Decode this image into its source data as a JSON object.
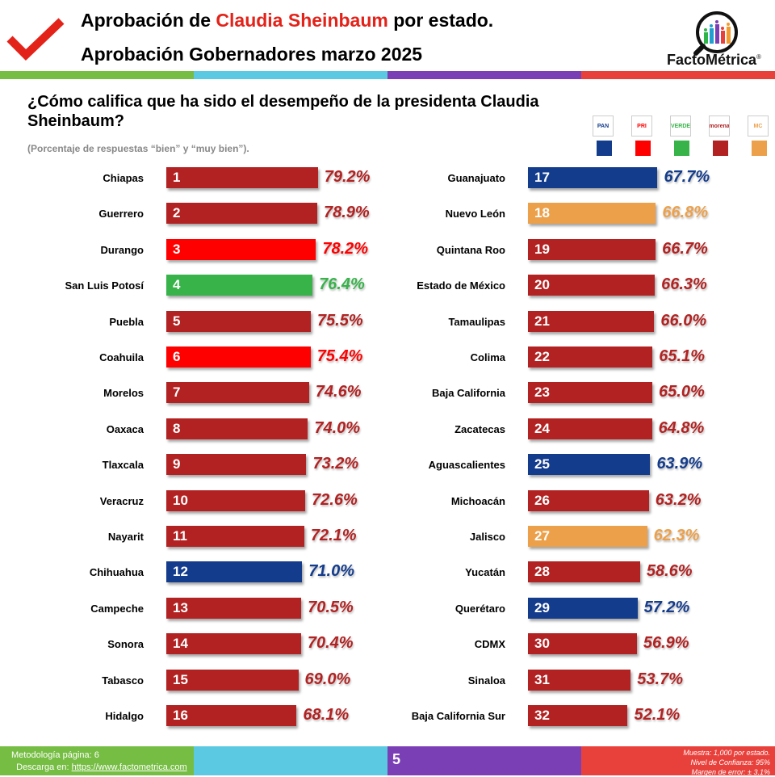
{
  "header": {
    "title_prefix": "Aprobación de ",
    "title_name": "Claudia Sheinbaum",
    "title_suffix": " por estado.",
    "title2": "Aprobación Gobernadores marzo 2025",
    "logo_text": "FactoMétrica",
    "logo_mark": "®"
  },
  "question": "¿Cómo califica que ha sido el desempeño de la presidenta Claudia Sheinbaum?",
  "subtitle": "(Porcentaje de respuestas “bien” y “muy bien”).",
  "colors": {
    "morena": "#b22222",
    "pri": "#ff0000",
    "pan": "#143c8c",
    "verde": "#38b54a",
    "mc": "#eca04a",
    "bar_green": "#37b34a",
    "accent_red": "#e32219",
    "band": [
      "#76bd43",
      "#5bc9e1",
      "#7b3fb5",
      "#e8413c"
    ]
  },
  "legend": [
    {
      "party": "PAN",
      "color": "#143c8c"
    },
    {
      "party": "PRI",
      "color": "#ff0000"
    },
    {
      "party": "VERDE",
      "color": "#37b34a"
    },
    {
      "party": "morena",
      "color": "#b22222"
    },
    {
      "party": "MC",
      "color": "#eca04a"
    }
  ],
  "chart_data": {
    "type": "bar",
    "orientation": "horizontal",
    "title": "¿Cómo califica que ha sido el desempeño de la presidenta Claudia Sheinbaum?",
    "subtitle": "(Porcentaje de respuestas “bien” y “muy bien”).",
    "unit": "%",
    "rows": [
      {
        "state": "Chiapas",
        "rank": 1,
        "value": 79.2,
        "party": "morena"
      },
      {
        "state": "Guerrero",
        "rank": 2,
        "value": 78.9,
        "party": "morena"
      },
      {
        "state": "Durango",
        "rank": 3,
        "value": 78.2,
        "party": "pri"
      },
      {
        "state": "San Luis Potosí",
        "rank": 4,
        "value": 76.4,
        "party": "verde"
      },
      {
        "state": "Puebla",
        "rank": 5,
        "value": 75.5,
        "party": "morena"
      },
      {
        "state": "Coahuila",
        "rank": 6,
        "value": 75.4,
        "party": "pri"
      },
      {
        "state": "Morelos",
        "rank": 7,
        "value": 74.6,
        "party": "morena"
      },
      {
        "state": "Oaxaca",
        "rank": 8,
        "value": 74.0,
        "party": "morena"
      },
      {
        "state": "Tlaxcala",
        "rank": 9,
        "value": 73.2,
        "party": "morena"
      },
      {
        "state": "Veracruz",
        "rank": 10,
        "value": 72.6,
        "party": "morena"
      },
      {
        "state": "Nayarit",
        "rank": 11,
        "value": 72.1,
        "party": "morena"
      },
      {
        "state": "Chihuahua",
        "rank": 12,
        "value": 71.0,
        "party": "pan"
      },
      {
        "state": "Campeche",
        "rank": 13,
        "value": 70.5,
        "party": "morena"
      },
      {
        "state": "Sonora",
        "rank": 14,
        "value": 70.4,
        "party": "morena"
      },
      {
        "state": "Tabasco",
        "rank": 15,
        "value": 69.0,
        "party": "morena"
      },
      {
        "state": "Hidalgo",
        "rank": 16,
        "value": 68.1,
        "party": "morena"
      },
      {
        "state": "Guanajuato",
        "rank": 17,
        "value": 67.7,
        "party": "pan"
      },
      {
        "state": "Nuevo León",
        "rank": 18,
        "value": 66.8,
        "party": "mc"
      },
      {
        "state": "Quintana Roo",
        "rank": 19,
        "value": 66.7,
        "party": "morena"
      },
      {
        "state": "Estado de México",
        "rank": 20,
        "value": 66.3,
        "party": "morena"
      },
      {
        "state": "Tamaulipas",
        "rank": 21,
        "value": 66.0,
        "party": "morena"
      },
      {
        "state": "Colima",
        "rank": 22,
        "value": 65.1,
        "party": "morena"
      },
      {
        "state": "Baja California",
        "rank": 23,
        "value": 65.0,
        "party": "morena"
      },
      {
        "state": "Zacatecas",
        "rank": 24,
        "value": 64.8,
        "party": "morena"
      },
      {
        "state": "Aguascalientes",
        "rank": 25,
        "value": 63.9,
        "party": "pan"
      },
      {
        "state": "Michoacán",
        "rank": 26,
        "value": 63.2,
        "party": "morena"
      },
      {
        "state": "Jalisco",
        "rank": 27,
        "value": 62.3,
        "party": "mc"
      },
      {
        "state": "Yucatán",
        "rank": 28,
        "value": 58.6,
        "party": "morena"
      },
      {
        "state": "Querétaro",
        "rank": 29,
        "value": 57.2,
        "party": "pan"
      },
      {
        "state": "CDMX",
        "rank": 30,
        "value": 56.9,
        "party": "morena"
      },
      {
        "state": "Sinaloa",
        "rank": 31,
        "value": 53.7,
        "party": "morena"
      },
      {
        "state": "Baja California Sur",
        "rank": 32,
        "value": 52.1,
        "party": "morena"
      }
    ]
  },
  "footer": {
    "methodology": "Metodología página: 6",
    "download_prefix": "Descarga en: ",
    "download_link": "https://www.factometrica.com",
    "page": "5",
    "sample": "Muestra:  1,000 por estado.",
    "confidence": "Nivel de Confianza: 95%",
    "margin": "Margen de error: ± 3.1%"
  }
}
